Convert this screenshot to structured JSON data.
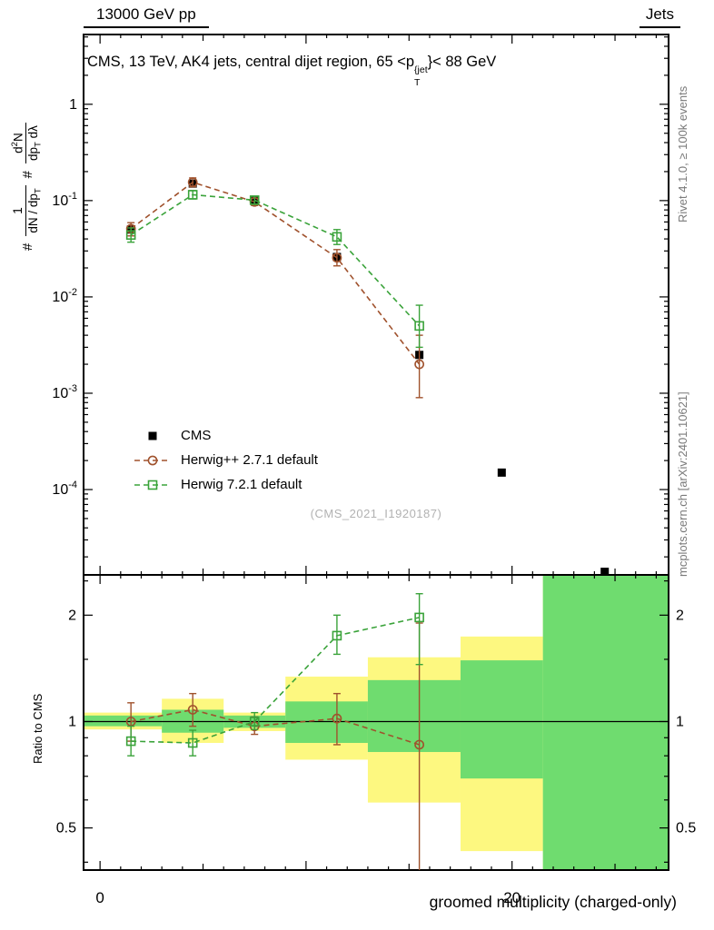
{
  "header": {
    "left": "13000 GeV pp",
    "right": "Jets"
  },
  "title": {
    "pre": "CMS, 13 TeV, AK4 jets, central dijet region, 65 <p",
    "sup": "{jet",
    "sub": "T",
    "post": "}< 88 GeV"
  },
  "ylabel_main": {
    "hash1": "#",
    "f1_num": "1",
    "f1_den": "dN / dp",
    "f1_den_sub": "T",
    "hash2": "#",
    "f2_num_a": "d",
    "f2_num_sup": "2",
    "f2_num_b": "N",
    "f2_den_a": "dp",
    "f2_den_sub": "T",
    "f2_den_b": " dλ"
  },
  "ratio_ylabel": "Ratio to CMS",
  "watermark": "(CMS_2021_I1920187)",
  "side_captions": {
    "top": "Rivet 4.1.0, ≥ 100k events",
    "bottom": "mcplots.cern.ch [arXiv:2401.10621]"
  },
  "legend": [
    {
      "label": "CMS",
      "marker": "filled-square",
      "color": "#000000",
      "line": "none"
    },
    {
      "label": "Herwig++ 2.7.1 default",
      "marker": "open-circle",
      "color": "#a0522d",
      "line": "dashed"
    },
    {
      "label": "Herwig 7.2.1 default",
      "marker": "open-square",
      "color": "#3aa33a",
      "line": "dashed"
    }
  ],
  "chart_data": {
    "type": "line",
    "title": "CMS, 13 TeV, AK4 jets, central dijet region, 65 < pT^{jet} < 88 GeV",
    "xlabel": "groomed multiplicity (charged-only)",
    "ylabel": "1/(dN/dpT) d2N/(dpT dλ)",
    "x_range": [
      -0.8,
      27.6
    ],
    "x_labeled_ticks": [
      {
        "value": 0,
        "label": "0"
      },
      {
        "value": 20,
        "label": "20"
      }
    ],
    "main_panel": {
      "y_scale": "log",
      "y_range": [
        1.3e-05,
        5.3
      ],
      "y_tick_exponents": [
        0,
        -1,
        -2,
        -3,
        -4
      ],
      "series": [
        {
          "name": "CMS",
          "color": "#000000",
          "marker": "filled-square",
          "line": "none",
          "points": [
            [
              1.5,
              0.05
            ],
            [
              4.5,
              0.15
            ],
            [
              7.5,
              0.1
            ],
            [
              11.5,
              0.026
            ],
            [
              15.5,
              0.0025
            ],
            [
              19.5,
              0.00015
            ],
            [
              24.5,
              1.4e-05
            ]
          ]
        },
        {
          "name": "Herwig++ 2.7.1 default",
          "color": "#a0522d",
          "marker": "open-circle",
          "line": "dashed",
          "points": [
            [
              1.5,
              0.051
            ],
            [
              4.5,
              0.155
            ],
            [
              7.5,
              0.097
            ],
            [
              11.5,
              0.0255
            ],
            [
              15.5,
              0.002
            ]
          ],
          "err_lo": [
            0.043,
            0.139,
            0.089,
            0.021,
            0.0009
          ],
          "err_hi": [
            0.059,
            0.172,
            0.106,
            0.031,
            0.004
          ]
        },
        {
          "name": "Herwig 7.2.1 default",
          "color": "#3aa33a",
          "marker": "open-square",
          "line": "dashed",
          "points": [
            [
              1.5,
              0.044
            ],
            [
              4.5,
              0.115
            ],
            [
              7.5,
              0.101
            ],
            [
              11.5,
              0.042
            ],
            [
              15.5,
              0.005
            ]
          ],
          "err_lo": [
            0.037,
            0.104,
            0.092,
            0.035,
            0.003
          ],
          "err_hi": [
            0.052,
            0.127,
            0.111,
            0.05,
            0.0082
          ]
        }
      ]
    },
    "ratio_panel": {
      "y_scale": "log",
      "y_range": [
        0.38,
        2.6
      ],
      "y_ticks": [
        0.5,
        1,
        2
      ],
      "y_minor_ticks": [
        0.4,
        0.6,
        0.7,
        0.8,
        0.9,
        1.5,
        2.5
      ],
      "band_colors": {
        "yellow": "#fdf880",
        "green": "#6fdc6f"
      },
      "bands": [
        {
          "x0": -0.8,
          "x1": 3,
          "yellow": [
            0.95,
            1.06
          ],
          "green": [
            0.97,
            1.04
          ]
        },
        {
          "x0": 3,
          "x1": 6,
          "yellow": [
            0.87,
            1.16
          ],
          "green": [
            0.93,
            1.08
          ]
        },
        {
          "x0": 6,
          "x1": 9,
          "yellow": [
            0.94,
            1.06
          ],
          "green": [
            0.96,
            1.04
          ]
        },
        {
          "x0": 9,
          "x1": 13,
          "yellow": [
            0.78,
            1.34
          ],
          "green": [
            0.87,
            1.14
          ]
        },
        {
          "x0": 13,
          "x1": 17.5,
          "yellow": [
            0.59,
            1.52
          ],
          "green": [
            0.82,
            1.31
          ]
        },
        {
          "x0": 17.5,
          "x1": 21.5,
          "yellow": [
            0.43,
            1.74
          ],
          "green": [
            0.69,
            1.49
          ]
        },
        {
          "x0": 21.5,
          "x1": 27.6,
          "yellow": [
            0.38,
            2.6
          ],
          "green": [
            0.38,
            2.6
          ]
        }
      ],
      "series": [
        {
          "name": "Herwig++ 2.7.1 default",
          "color": "#a0522d",
          "marker": "open-circle",
          "line": "dashed",
          "points": [
            [
              1.5,
              1.0
            ],
            [
              4.5,
              1.08
            ],
            [
              7.5,
              0.97
            ],
            [
              11.5,
              1.02
            ],
            [
              15.5,
              0.86
            ]
          ],
          "err_lo": [
            0.88,
            0.97,
            0.92,
            0.86,
            0.3
          ],
          "err_hi": [
            1.13,
            1.2,
            1.03,
            1.2,
            1.9
          ]
        },
        {
          "name": "Herwig 7.2.1 default",
          "color": "#3aa33a",
          "marker": "open-square",
          "line": "dashed",
          "points": [
            [
              1.5,
              0.88
            ],
            [
              4.5,
              0.87
            ],
            [
              7.5,
              1.0
            ],
            [
              11.5,
              1.75
            ],
            [
              15.5,
              1.97
            ]
          ],
          "err_lo": [
            0.8,
            0.8,
            0.95,
            1.55,
            1.45
          ],
          "err_hi": [
            0.97,
            0.945,
            1.06,
            2.0,
            2.3
          ]
        }
      ]
    }
  }
}
